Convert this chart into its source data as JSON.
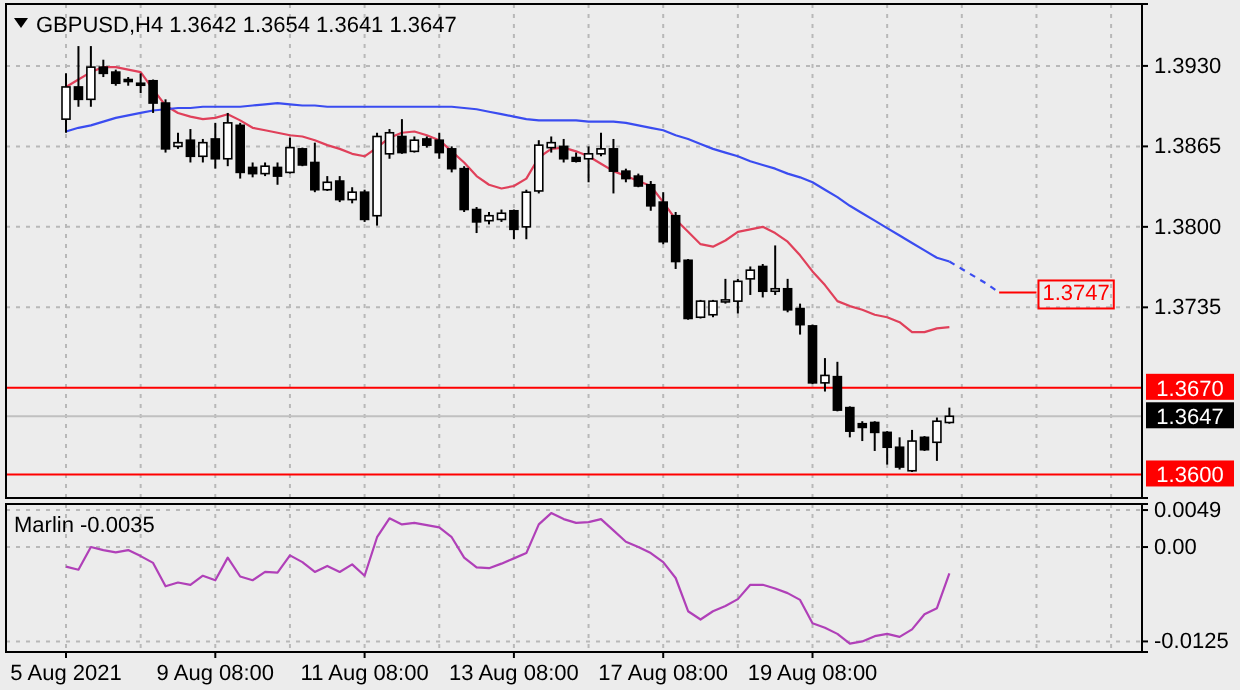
{
  "chart_data": [
    {
      "type": "candlestick",
      "title": "GBPUSD,H4  1.3642 1.3654 1.3641 1.3647",
      "categories": [
        null,
        null,
        null,
        null,
        null,
        null,
        null,
        null,
        null,
        null,
        null,
        null,
        null,
        null,
        null,
        null,
        null,
        null,
        null,
        null,
        null,
        null,
        null,
        null,
        null,
        null,
        null,
        null,
        null,
        null,
        null,
        null,
        null,
        null,
        null,
        null,
        null,
        null,
        null,
        null,
        null,
        null,
        null,
        null,
        null,
        null,
        null,
        null,
        null,
        null,
        null,
        null,
        null,
        null,
        null,
        null,
        null,
        null,
        null,
        null,
        null,
        null,
        null,
        null,
        null,
        null,
        null,
        null,
        null,
        null,
        null,
        null,
        null,
        null,
        null,
        null,
        null,
        null,
        null,
        null,
        null,
        null,
        null,
        null,
        null,
        null,
        null
      ],
      "ohlc": [
        [
          1.3887,
          1.3924,
          1.3876,
          1.3913
        ],
        [
          1.3913,
          1.3946,
          1.3897,
          1.3903
        ],
        [
          1.3903,
          1.3946,
          1.3897,
          1.3929
        ],
        [
          1.3929,
          1.3935,
          1.3921,
          1.3924
        ],
        [
          1.3925,
          1.3927,
          1.3914,
          1.3916
        ],
        [
          1.3919,
          1.3921,
          1.3914,
          1.3918
        ],
        [
          1.3916,
          1.3924,
          1.3908,
          1.3915
        ],
        [
          1.3918,
          1.3919,
          1.3892,
          1.39
        ],
        [
          1.39,
          1.3903,
          1.386,
          1.3863
        ],
        [
          1.3865,
          1.3876,
          1.3863,
          1.3868
        ],
        [
          1.387,
          1.3879,
          1.3852,
          1.3857
        ],
        [
          1.3857,
          1.3871,
          1.3852,
          1.3868
        ],
        [
          1.3871,
          1.3884,
          1.3847,
          1.3855
        ],
        [
          1.3855,
          1.3892,
          1.3849,
          1.3884
        ],
        [
          1.3882,
          1.3884,
          1.3839,
          1.3844
        ],
        [
          1.3848,
          1.3852,
          1.384,
          1.3843
        ],
        [
          1.3843,
          1.3852,
          1.3841,
          1.3849
        ],
        [
          1.3848,
          1.3852,
          1.3834,
          1.3841
        ],
        [
          1.3844,
          1.3872,
          1.3843,
          1.3864
        ],
        [
          1.3863,
          1.3864,
          1.3849,
          1.385
        ],
        [
          1.3852,
          1.3868,
          1.3828,
          1.383
        ],
        [
          1.383,
          1.3841,
          1.3829,
          1.3836
        ],
        [
          1.3837,
          1.3841,
          1.382,
          1.3822
        ],
        [
          1.3822,
          1.3832,
          1.3819,
          1.3828
        ],
        [
          1.3828,
          1.383,
          1.3804,
          1.3806
        ],
        [
          1.3809,
          1.3876,
          1.3801,
          1.3873
        ],
        [
          1.3859,
          1.3879,
          1.3855,
          1.3876
        ],
        [
          1.3873,
          1.3887,
          1.3859,
          1.386
        ],
        [
          1.3861,
          1.3873,
          1.386,
          1.387
        ],
        [
          1.3871,
          1.3873,
          1.3864,
          1.3866
        ],
        [
          1.387,
          1.3876,
          1.3855,
          1.386
        ],
        [
          1.3863,
          1.3865,
          1.3844,
          1.3847
        ],
        [
          1.3847,
          1.3849,
          1.3812,
          1.3814
        ],
        [
          1.3814,
          1.3816,
          1.3795,
          1.3804
        ],
        [
          1.3805,
          1.3812,
          1.3802,
          1.3809
        ],
        [
          1.3806,
          1.3814,
          1.3804,
          1.3811
        ],
        [
          1.3813,
          1.3814,
          1.379,
          1.3798
        ],
        [
          1.38,
          1.383,
          1.379,
          1.3828
        ],
        [
          1.3829,
          1.387,
          1.3827,
          1.3866
        ],
        [
          1.3864,
          1.3873,
          1.386,
          1.3868
        ],
        [
          1.3865,
          1.3871,
          1.3852,
          1.3855
        ],
        [
          1.3856,
          1.386,
          1.3852,
          1.3853
        ],
        [
          1.3855,
          1.3865,
          1.3836,
          1.3859
        ],
        [
          1.3859,
          1.3876,
          1.3857,
          1.3863
        ],
        [
          1.3863,
          1.3871,
          1.3827,
          1.3845
        ],
        [
          1.3845,
          1.3847,
          1.3836,
          1.3839
        ],
        [
          1.3841,
          1.3843,
          1.3832,
          1.3833
        ],
        [
          1.3834,
          1.3837,
          1.3813,
          1.3817
        ],
        [
          1.382,
          1.3828,
          1.3786,
          1.3788
        ],
        [
          1.3809,
          1.3812,
          1.3766,
          1.3772
        ],
        [
          1.3773,
          1.3774,
          1.3725,
          1.3726
        ],
        [
          1.3727,
          1.3741,
          1.3726,
          1.374
        ],
        [
          1.3729,
          1.3741,
          1.3727,
          1.374
        ],
        [
          1.374,
          1.3758,
          1.3738,
          1.3741
        ],
        [
          1.374,
          1.3758,
          1.373,
          1.3756
        ],
        [
          1.3758,
          1.3768,
          1.3745,
          1.3765
        ],
        [
          1.3768,
          1.377,
          1.3743,
          1.3748
        ],
        [
          1.3748,
          1.3785,
          1.3745,
          1.375
        ],
        [
          1.375,
          1.3758,
          1.3731,
          1.3733
        ],
        [
          1.3734,
          1.3738,
          1.3713,
          1.3721
        ],
        [
          1.372,
          1.3721,
          1.3673,
          1.3674
        ],
        [
          1.3674,
          1.3694,
          1.3667,
          1.368
        ],
        [
          1.3679,
          1.3691,
          1.3651,
          1.3652
        ],
        [
          1.3654,
          1.3655,
          1.363,
          1.3635
        ],
        [
          1.3641,
          1.3643,
          1.3627,
          1.3638
        ],
        [
          1.3642,
          1.3643,
          1.3619,
          1.3634
        ],
        [
          1.3634,
          1.3635,
          1.3608,
          1.3622
        ],
        [
          1.3622,
          1.363,
          1.3604,
          1.3606
        ],
        [
          1.3603,
          1.3636,
          1.3602,
          1.3627
        ],
        [
          1.363,
          1.3631,
          1.3619,
          1.362
        ],
        [
          1.3626,
          1.3646,
          1.3611,
          1.3643
        ],
        [
          1.3642,
          1.3654,
          1.3641,
          1.3647
        ],
        null,
        null,
        null,
        null,
        null,
        null,
        null,
        null,
        null,
        null,
        null,
        null,
        null,
        null,
        null
      ],
      "series": [
        {
          "type": "line",
          "color": "#e0405a",
          "values": [
            1.3913,
            1.3919,
            1.3925,
            1.3929,
            1.3929,
            1.3927,
            1.3925,
            1.3911,
            1.3898,
            1.3892,
            1.3889,
            1.3887,
            1.3888,
            1.3891,
            1.3886,
            1.388,
            1.3878,
            1.3876,
            1.3874,
            1.3873,
            1.387,
            1.3866,
            1.3863,
            1.3859,
            1.3857,
            1.3864,
            1.3872,
            1.3876,
            1.3877,
            1.3874,
            1.387,
            1.3861,
            1.3852,
            1.3841,
            1.3834,
            1.3831,
            1.3833,
            1.3839,
            1.3856,
            1.3863,
            1.3864,
            1.3861,
            1.3857,
            1.3851,
            1.3845,
            1.3841,
            1.3837,
            1.3833,
            1.382,
            1.3806,
            1.3796,
            1.3786,
            1.3784,
            1.3789,
            1.3796,
            1.3798,
            1.38,
            1.3795,
            1.3788,
            1.3777,
            1.3764,
            1.3753,
            1.374,
            1.3736,
            1.3733,
            1.3729,
            1.3727,
            1.3723,
            1.3715,
            1.3715,
            1.3718,
            1.3719,
            null,
            null,
            null,
            null,
            null,
            null,
            null,
            null,
            null,
            null,
            null,
            null,
            null,
            null,
            null
          ]
        },
        {
          "type": "line",
          "color": "#3a4cf0",
          "values": [
            1.3877,
            1.388,
            1.3882,
            1.3885,
            1.3888,
            1.389,
            1.3892,
            1.3894,
            1.3895,
            1.3896,
            1.3896,
            1.3897,
            1.3897,
            1.3897,
            1.3897,
            1.3898,
            1.3899,
            1.39,
            1.3899,
            1.3898,
            1.3898,
            1.3897,
            1.3897,
            1.3897,
            1.3897,
            1.3897,
            1.3897,
            1.3897,
            1.3897,
            1.3897,
            1.3897,
            1.3897,
            1.3896,
            1.3895,
            1.3893,
            1.3891,
            1.3889,
            1.3887,
            1.3886,
            1.3886,
            1.3886,
            1.3886,
            1.3885,
            1.3885,
            1.3885,
            1.3884,
            1.3882,
            1.388,
            1.3878,
            1.3874,
            1.3871,
            1.3867,
            1.3863,
            1.386,
            1.3857,
            1.3853,
            1.385,
            1.3847,
            1.3843,
            1.384,
            1.3836,
            1.383,
            1.3824,
            1.3817,
            1.3811,
            1.3805,
            1.3799,
            1.3793,
            1.3787,
            1.3781,
            1.3775,
            1.3772,
            null,
            null,
            null,
            null,
            null,
            null,
            null,
            null,
            null,
            null,
            null,
            null,
            null,
            null,
            null
          ]
        },
        {
          "type": "line",
          "color": "#3a4cf0",
          "line_style": "dashed",
          "values": [
            null,
            null,
            null,
            null,
            null,
            null,
            null,
            null,
            null,
            null,
            null,
            null,
            null,
            null,
            null,
            null,
            null,
            null,
            null,
            null,
            null,
            null,
            null,
            null,
            null,
            null,
            null,
            null,
            null,
            null,
            null,
            null,
            null,
            null,
            null,
            null,
            null,
            null,
            null,
            null,
            null,
            null,
            null,
            null,
            null,
            null,
            null,
            null,
            null,
            null,
            null,
            null,
            null,
            null,
            null,
            null,
            null,
            null,
            null,
            null,
            null,
            null,
            null,
            null,
            null,
            null,
            null,
            null,
            null,
            null,
            null,
            1.3772,
            1.3766,
            1.376,
            1.3754,
            1.3747,
            null,
            null,
            null,
            null,
            null,
            null,
            null,
            null,
            null,
            null,
            null
          ]
        }
      ],
      "ylim": [
        1.3581,
        1.398
      ],
      "yticks": [
        {
          "value": 1.393,
          "label": "1.3930"
        },
        1.3865,
        {
          "value": 1.38,
          "label": "1.3800"
        },
        1.3735
      ],
      "ref_lines": [
        {
          "axis": "y",
          "value": 1.367,
          "label": "1.3670",
          "color": "#ff0000"
        },
        {
          "axis": "y",
          "value": 1.36,
          "label": "1.3600",
          "color": "#ff0000"
        },
        {
          "axis": "y",
          "value": 1.3647,
          "label": "1.3647",
          "color": "#c0c0c0"
        }
      ],
      "annotations": [
        {
          "text": "1.3747",
          "y": 1.3747
        }
      ],
      "grid": true,
      "tick_labels": "y"
    },
    {
      "type": "line",
      "title": "Marlin -0.0035",
      "categories": [
        "5 Aug 2021",
        null,
        null,
        null,
        null,
        null,
        null,
        null,
        null,
        null,
        null,
        null,
        "9 Aug 08:00",
        null,
        null,
        null,
        null,
        null,
        null,
        null,
        null,
        null,
        null,
        null,
        "11 Aug 08:00",
        null,
        null,
        null,
        null,
        null,
        null,
        null,
        null,
        null,
        null,
        null,
        "13 Aug 08:00",
        null,
        null,
        null,
        null,
        null,
        null,
        null,
        null,
        null,
        null,
        null,
        "17 Aug 08:00",
        null,
        null,
        null,
        null,
        null,
        null,
        null,
        null,
        null,
        null,
        null,
        "19 Aug 08:00",
        null,
        null,
        null,
        null,
        null,
        null,
        null,
        null,
        null,
        null,
        null,
        null,
        null,
        null,
        null,
        null,
        null,
        null,
        null,
        null,
        null,
        null,
        null,
        null,
        null,
        null
      ],
      "series": [
        {
          "color": "#b040b8",
          "values": [
            -0.0026,
            -0.003,
            0.0,
            -0.0004,
            -0.0007,
            -0.0004,
            -0.0012,
            -0.0021,
            -0.0052,
            -0.0047,
            -0.005,
            -0.0038,
            -0.0044,
            -0.0014,
            -0.0039,
            -0.0044,
            -0.0033,
            -0.0034,
            -0.0011,
            -0.002,
            -0.0033,
            -0.0025,
            -0.0033,
            -0.0023,
            -0.0038,
            0.0013,
            0.0038,
            0.003,
            0.0032,
            0.0029,
            0.0026,
            0.0013,
            -0.0014,
            -0.0027,
            -0.0028,
            -0.0022,
            -0.0015,
            -0.0008,
            0.003,
            0.0045,
            0.0037,
            0.0032,
            0.0033,
            0.0037,
            0.0022,
            0.0007,
            0.0,
            -0.0008,
            -0.002,
            -0.0041,
            -0.0085,
            -0.0096,
            -0.0085,
            -0.0078,
            -0.0069,
            -0.005,
            -0.005,
            -0.0055,
            -0.0061,
            -0.007,
            -0.0101,
            -0.0107,
            -0.0115,
            -0.0128,
            -0.0125,
            -0.0118,
            -0.0115,
            -0.0119,
            -0.0109,
            -0.0089,
            -0.0081,
            -0.0035,
            null,
            null,
            null,
            null,
            null,
            null,
            null,
            null,
            null,
            null,
            null,
            null,
            null,
            null,
            null
          ]
        }
      ],
      "ylim": [
        -0.0139,
        0.0057
      ],
      "yticks": [
        0.0049,
        {
          "value": 0,
          "label": "0.00"
        },
        -0.0125
      ],
      "grid": true
    }
  ]
}
